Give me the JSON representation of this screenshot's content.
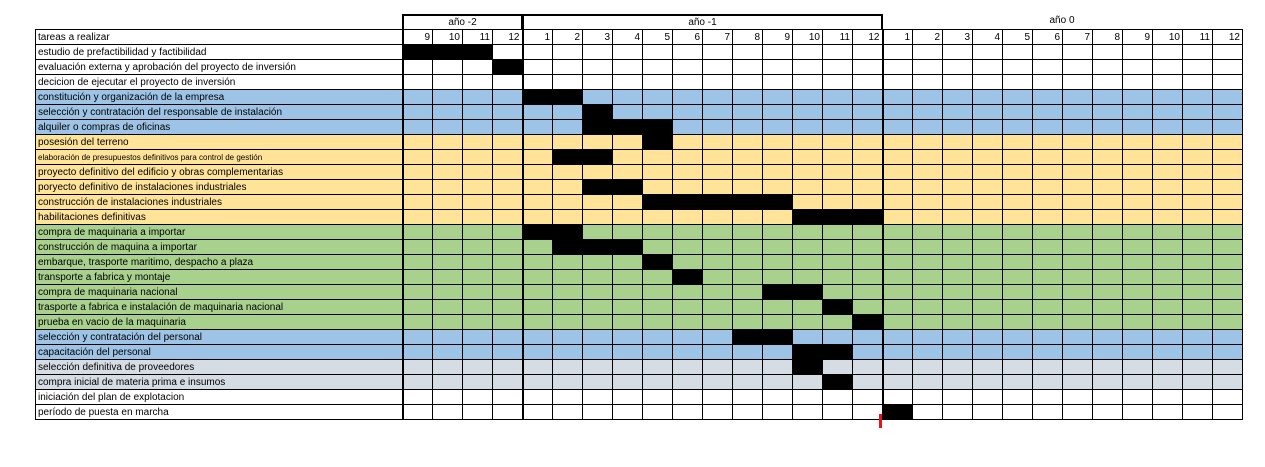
{
  "header": {
    "tasks_label": "tareas a realizar",
    "years": [
      {
        "label": "año -2",
        "months": [
          9,
          10,
          11,
          12
        ]
      },
      {
        "label": "año -1",
        "months": [
          1,
          2,
          3,
          4,
          5,
          6,
          7,
          8,
          9,
          10,
          11,
          12
        ]
      },
      {
        "label": "año 0",
        "months": [
          1,
          2,
          3,
          4,
          5,
          6,
          7,
          8,
          9,
          10,
          11,
          12
        ]
      }
    ]
  },
  "colors": {
    "white": "#ffffff",
    "blue": "#9dc3e6",
    "orange": "#ffe399",
    "green": "#a9d18e",
    "gray": "#d6dce4",
    "bar": "#000000",
    "marker": "#e8141c"
  },
  "tasks": [
    {
      "name": "estudio de prefactibilidad y factibilidad",
      "color": "white",
      "start": 0,
      "end": 3
    },
    {
      "name": "evaluación externa y aprobación del proyecto de inversión",
      "color": "white",
      "start": 3,
      "end": 4
    },
    {
      "name": "decicion de ejecutar el proyecto de inversión",
      "color": "white",
      "start": null,
      "end": null
    },
    {
      "name": "constitución y organización de la empresa",
      "color": "blue",
      "start": 4,
      "end": 6
    },
    {
      "name": "selección y contratación del responsable de instalación",
      "color": "blue",
      "start": 6,
      "end": 7
    },
    {
      "name": "alquiler o compras de oficinas",
      "color": "blue",
      "start": 6,
      "end": 9
    },
    {
      "name": "posesión del terreno",
      "color": "orange",
      "start": 8,
      "end": 9
    },
    {
      "name": "elaboración de presupuestos definitivos para control  de gestión",
      "color": "orange",
      "start": 5,
      "end": 7,
      "small": true
    },
    {
      "name": "proyecto definitivo  del edificio y obras complementarias",
      "color": "orange",
      "start": null,
      "end": null
    },
    {
      "name": "poryecto definitivo de instalaciones industriales",
      "color": "orange",
      "start": 6,
      "end": 8
    },
    {
      "name": "construcción de instalaciones industriales",
      "color": "orange",
      "start": 8,
      "end": 13
    },
    {
      "name": "habilitaciones definitivas",
      "color": "orange",
      "start": 13,
      "end": 16
    },
    {
      "name": "compra de maquinaria a importar",
      "color": "green",
      "start": 4,
      "end": 6
    },
    {
      "name": "construcción de maquina a importar",
      "color": "green",
      "start": 5,
      "end": 8
    },
    {
      "name": "embarque, trasporte maritimo, despacho a plaza",
      "color": "green",
      "start": 8,
      "end": 9
    },
    {
      "name": "transporte a fabrica y montaje",
      "color": "green",
      "start": 9,
      "end": 10
    },
    {
      "name": "compra de maquinaria nacional",
      "color": "green",
      "start": 12,
      "end": 14
    },
    {
      "name": "trasporte a fabrica e instalación de maquinaria nacional",
      "color": "green",
      "start": 14,
      "end": 15
    },
    {
      "name": "prueba en vacio de la maquinaria",
      "color": "green",
      "start": 15,
      "end": 16
    },
    {
      "name": "selección y contratación del personal",
      "color": "blue",
      "start": 11,
      "end": 13
    },
    {
      "name": "capacitación del personal",
      "color": "blue",
      "start": 13,
      "end": 15
    },
    {
      "name": "selección definitiva de proveedores",
      "color": "gray",
      "start": 13,
      "end": 14
    },
    {
      "name": "compra inicial de materia prima e insumos",
      "color": "gray",
      "start": 14,
      "end": 15
    },
    {
      "name": "iniciación del plan de explotacion",
      "color": "white",
      "start": null,
      "end": null,
      "milestone": 16
    },
    {
      "name": "período de puesta en marcha",
      "color": "white",
      "start": 16,
      "end": 17
    }
  ]
}
